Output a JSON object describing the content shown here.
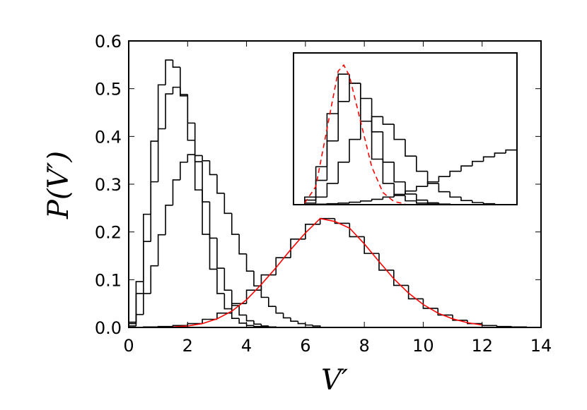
{
  "chart_data": [
    {
      "type": "histogram",
      "xlabel": "V′",
      "ylabel": "P(V′)",
      "xlim": [
        0,
        14
      ],
      "ylim": [
        0,
        0.6
      ],
      "xticks": [
        0,
        2,
        4,
        6,
        8,
        10,
        12,
        14
      ],
      "yticks": [
        {
          "value": 0,
          "label": "0.0"
        },
        0.1,
        0.2,
        0.3,
        0.4,
        0.5,
        0.6
      ],
      "series": [
        {
          "color": "#000000",
          "bins": [
            0,
            0.25,
            0.5,
            0.75,
            1,
            1.25,
            1.5,
            1.75,
            2,
            2.25,
            2.5,
            2.75,
            3,
            3.25,
            3.5,
            3.75,
            4,
            4.25,
            4.5,
            4.75
          ],
          "values": [
            0.011,
            0.096,
            0.237,
            0.39,
            0.508,
            0.56,
            0.545,
            0.485,
            0.392,
            0.288,
            0.195,
            0.122,
            0.071,
            0.039,
            0.019,
            0.009,
            0.004,
            0.002,
            0.001
          ]
        },
        {
          "color": "#000000",
          "bins": [
            0,
            0.25,
            0.5,
            0.75,
            1,
            1.25,
            1.5,
            1.75,
            2,
            2.25,
            2.5,
            2.75,
            3,
            3.25,
            3.5,
            3.75,
            4,
            4.25,
            4.5,
            4.75,
            5
          ],
          "values": [
            0.008,
            0.071,
            0.18,
            0.305,
            0.416,
            0.489,
            0.503,
            0.488,
            0.428,
            0.347,
            0.263,
            0.187,
            0.124,
            0.078,
            0.046,
            0.026,
            0.014,
            0.007,
            0.003,
            0.001
          ]
        },
        {
          "color": "#000000",
          "bins": [
            0,
            0.25,
            0.5,
            0.75,
            1,
            1.25,
            1.5,
            1.75,
            2,
            2.25,
            2.5,
            2.75,
            3,
            3.25,
            3.5,
            3.75,
            4,
            4.25,
            4.5,
            4.75,
            5,
            5.25,
            5.5,
            5.75,
            6,
            6.25,
            6.5
          ],
          "values": [
            0.003,
            0.027,
            0.071,
            0.129,
            0.194,
            0.256,
            0.309,
            0.346,
            0.362,
            0.36,
            0.349,
            0.32,
            0.281,
            0.239,
            0.195,
            0.154,
            0.118,
            0.087,
            0.063,
            0.044,
            0.03,
            0.02,
            0.013,
            0.008,
            0.005,
            0.003
          ]
        },
        {
          "color": "#000000",
          "bins": [
            0.5,
            1,
            1.5,
            2,
            2.5,
            3,
            3.5,
            4,
            4.5,
            5,
            5.5,
            6,
            6.5,
            7,
            7.5,
            8,
            8.5,
            9,
            9.5,
            10,
            10.5,
            11,
            11.5,
            12,
            12.5,
            13,
            13.5
          ],
          "values": [
            0.001,
            0.002,
            0.004,
            0.008,
            0.017,
            0.03,
            0.05,
            0.078,
            0.11,
            0.146,
            0.185,
            0.216,
            0.228,
            0.218,
            0.19,
            0.155,
            0.12,
            0.088,
            0.06,
            0.04,
            0.026,
            0.015,
            0.008,
            0.004,
            0.002,
            0.001
          ]
        }
      ],
      "fits": [
        {
          "color": "#ff0000",
          "dashed": false,
          "x": [
            1.5,
            2,
            2.5,
            3,
            3.5,
            4,
            4.5,
            5,
            5.5,
            6,
            6.5,
            7,
            7.5,
            8,
            8.5,
            9,
            9.5,
            10,
            10.5,
            11,
            11.5,
            12
          ],
          "values": [
            0.001,
            0.003,
            0.008,
            0.018,
            0.034,
            0.058,
            0.09,
            0.125,
            0.163,
            0.198,
            0.228,
            0.222,
            0.208,
            0.175,
            0.138,
            0.102,
            0.072,
            0.048,
            0.03,
            0.018,
            0.01,
            0.005
          ]
        }
      ]
    },
    {
      "type": "histogram",
      "xlim": [
        0,
        1
      ],
      "ylim": [
        0,
        1
      ],
      "series": [
        {
          "color": "#000000",
          "bins": [
            0,
            0.05,
            0.1,
            0.15,
            0.2,
            0.25,
            0.3,
            0.35,
            0.4,
            0.45,
            0.5,
            0.55,
            0.6,
            0.65,
            0.7
          ],
          "values": [
            0,
            0.05,
            0.25,
            0.6,
            0.86,
            0.8,
            0.55,
            0.3,
            0.14,
            0.06,
            0.025,
            0.01,
            0.004,
            0.001
          ]
        },
        {
          "color": "#000000",
          "bins": [
            0,
            0.05,
            0.1,
            0.15,
            0.2,
            0.25,
            0.3,
            0.35,
            0.4,
            0.45,
            0.5,
            0.55,
            0.6,
            0.65,
            0.7
          ],
          "values": [
            0,
            0.03,
            0.16,
            0.42,
            0.68,
            0.8,
            0.7,
            0.48,
            0.28,
            0.15,
            0.07,
            0.03,
            0.012,
            0.004
          ]
        },
        {
          "color": "#000000",
          "bins": [
            0,
            0.05,
            0.1,
            0.15,
            0.2,
            0.25,
            0.3,
            0.35,
            0.4,
            0.45,
            0.5,
            0.55,
            0.6,
            0.65,
            0.7,
            0.75,
            0.8,
            0.85,
            0.9
          ],
          "values": [
            0,
            0.01,
            0.05,
            0.14,
            0.28,
            0.43,
            0.55,
            0.58,
            0.53,
            0.43,
            0.32,
            0.22,
            0.14,
            0.085,
            0.05,
            0.027,
            0.014,
            0.006
          ]
        },
        {
          "color": "#000000",
          "bins": [
            0.1,
            0.15,
            0.2,
            0.25,
            0.3,
            0.35,
            0.4,
            0.45,
            0.5,
            0.55,
            0.6,
            0.65,
            0.7,
            0.75,
            0.8,
            0.85,
            0.9,
            0.95,
            1
          ],
          "values": [
            0.003,
            0.006,
            0.01,
            0.016,
            0.024,
            0.035,
            0.05,
            0.068,
            0.09,
            0.12,
            0.15,
            0.185,
            0.22,
            0.255,
            0.285,
            0.315,
            0.34,
            0.36
          ]
        }
      ],
      "fits": [
        {
          "color": "#ff0000",
          "dashed": true,
          "x": [
            0.05,
            0.1,
            0.15,
            0.2,
            0.225,
            0.25,
            0.3,
            0.35,
            0.4,
            0.45,
            0.5
          ],
          "values": [
            0.01,
            0.12,
            0.5,
            0.88,
            0.92,
            0.85,
            0.55,
            0.25,
            0.08,
            0.02,
            0.005
          ]
        }
      ]
    }
  ]
}
